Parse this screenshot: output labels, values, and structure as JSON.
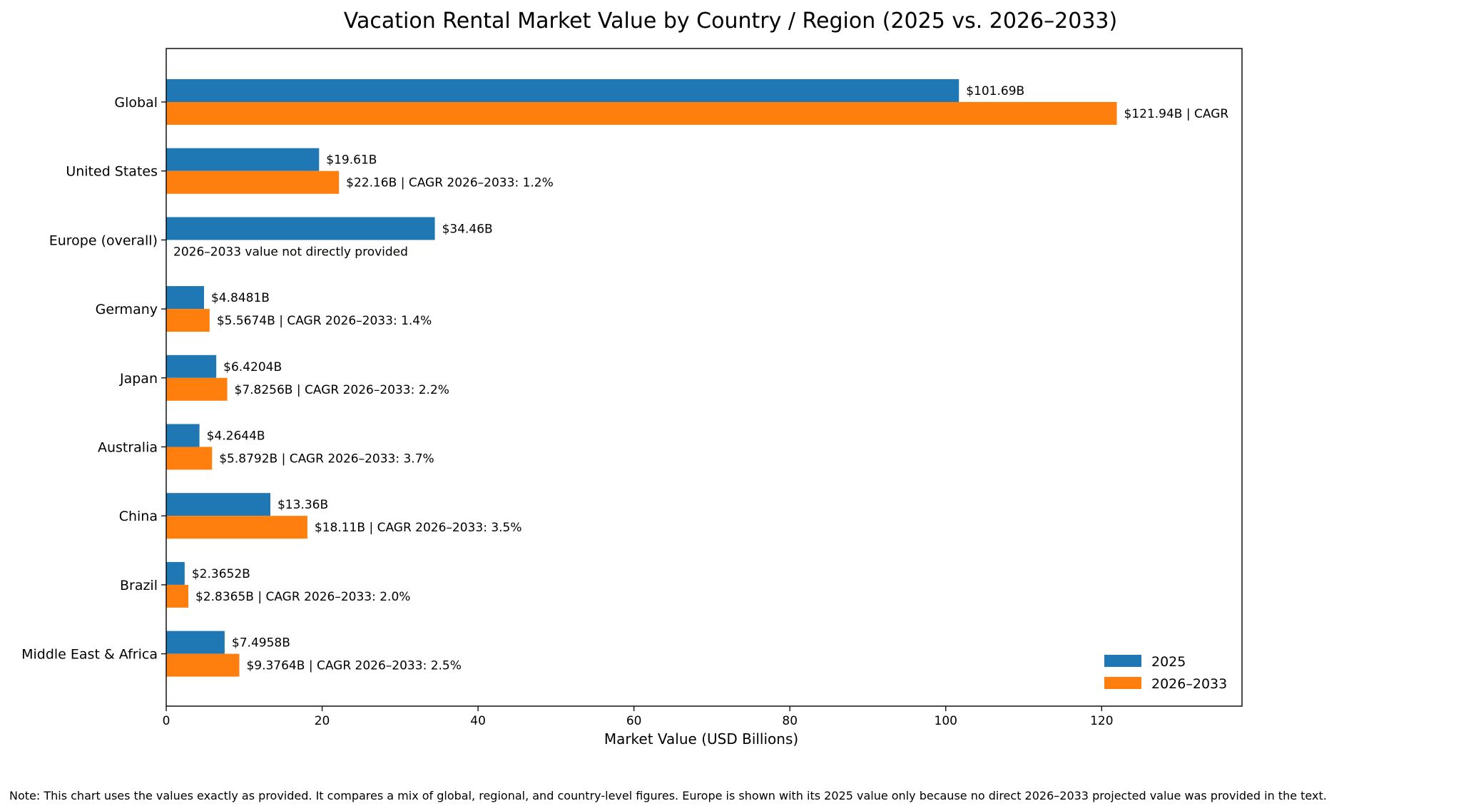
{
  "chart_data": {
    "type": "bar",
    "orientation": "horizontal",
    "title": "Vacation Rental Market Value by Country / Region (2025 vs. 2026–2033)",
    "xlabel": "Market Value (USD Billions)",
    "ylabel": "",
    "xlim": [
      0,
      138
    ],
    "xticks": [
      0,
      20,
      40,
      60,
      80,
      100,
      120
    ],
    "grid": false,
    "legend_position": "lower-right",
    "categories": [
      "Global",
      "United States",
      "Europe (overall)",
      "Germany",
      "Japan",
      "Australia",
      "China",
      "Brazil",
      "Middle East & Africa"
    ],
    "series": [
      {
        "name": "2025",
        "color": "#1f77b4",
        "values": [
          101.69,
          19.61,
          34.46,
          4.8481,
          6.4204,
          4.2644,
          13.36,
          2.3652,
          7.4958
        ],
        "labels": [
          "$101.69B",
          "$19.61B",
          "$34.46B",
          "$4.8481B",
          "$6.4204B",
          "$4.2644B",
          "$13.36B",
          "$2.3652B",
          "$7.4958B"
        ]
      },
      {
        "name": "2026–2033",
        "color": "#ff7f0e",
        "values": [
          121.94,
          22.16,
          null,
          5.5674,
          7.8256,
          5.8792,
          18.11,
          2.8365,
          9.3764
        ],
        "labels": [
          "$121.94B | CAGR",
          "$22.16B | CAGR 2026–2033: 1.2%",
          "",
          "$5.5674B | CAGR 2026–2033: 1.4%",
          "$7.8256B | CAGR 2026–2033: 2.2%",
          "$5.8792B | CAGR 2026–2033: 3.7%",
          "$18.11B | CAGR 2026–2033: 3.5%",
          "$2.8365B | CAGR 2026–2033: 2.0%",
          "$9.3764B | CAGR 2026–2033: 2.5%"
        ]
      }
    ],
    "annotations": [
      {
        "category": "Europe (overall)",
        "text": "2026–2033 value not directly provided"
      }
    ]
  },
  "note": "Note: This chart uses the values exactly as provided. It compares a mix of global, regional, and country-level figures. Europe is shown with its 2025 value only because no direct 2026–2033 projected value was provided in the text."
}
